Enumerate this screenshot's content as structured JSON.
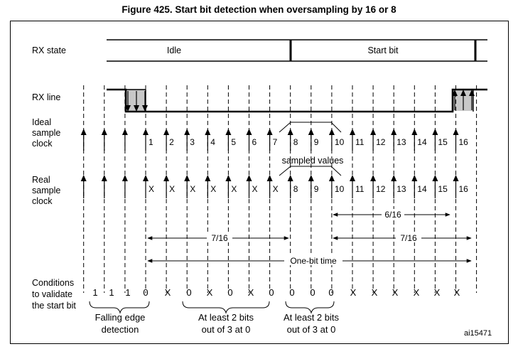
{
  "title": "Figure 425. Start bit detection when oversampling by 16 or 8",
  "row_labels": {
    "rx_state": "RX state",
    "rx_line": "RX line",
    "ideal_clock": [
      "Ideal",
      "sample",
      "clock"
    ],
    "real_clock": [
      "Real",
      "sample",
      "clock"
    ],
    "conditions": [
      "Conditions",
      "to validate",
      "the start bit"
    ]
  },
  "states": {
    "idle": "Idle",
    "start_bit": "Start bit"
  },
  "ideal_ticks": [
    "1",
    "2",
    "3",
    "4",
    "5",
    "6",
    "7",
    "8",
    "9",
    "10",
    "11",
    "12",
    "13",
    "14",
    "15",
    "16"
  ],
  "real_ticks": [
    "X",
    "X",
    "X",
    "X",
    "X",
    "X",
    "X",
    "X",
    "8",
    "X",
    "9",
    "10",
    "11",
    "12",
    "13",
    "14",
    "15",
    "16"
  ],
  "sampled_values_label": "sampled values",
  "measurements": {
    "m1": "6/16",
    "m2": "7/16",
    "m3": "7/16",
    "m4": "One-bit time"
  },
  "condition_values": [
    "1",
    "1",
    "1",
    "0",
    "X",
    "0",
    "X",
    "0",
    "X",
    "0",
    "0",
    "0",
    "0",
    "X",
    "X",
    "X",
    "X",
    "X",
    "X"
  ],
  "condition_notes": [
    {
      "lines": [
        "Falling edge",
        "detection"
      ]
    },
    {
      "lines": [
        "At least 2 bits",
        "out of 3 at 0"
      ]
    },
    {
      "lines": [
        "At least 2 bits",
        "out of 3 at 0"
      ]
    }
  ],
  "reference": "ai15471"
}
